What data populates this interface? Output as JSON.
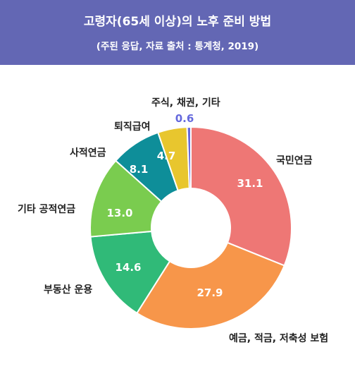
{
  "header": {
    "title": "고령자(65세 이상)의 노후 준비 방법",
    "subtitle": "(주된 응답, 자료 출처 : 통계청, 2019)"
  },
  "colors": {
    "header_bg": "#6367b4",
    "series": [
      "#ee7775",
      "#f7964a",
      "#30ba78",
      "#7acc4f",
      "#0e8e99",
      "#e8c62e",
      "#6569dd"
    ]
  },
  "chart_data": {
    "type": "pie",
    "donut": true,
    "title": "고령자(65세 이상)의 노후 준비 방법",
    "subtitle": "(주된 응답, 자료 출처 : 통계청, 2019)",
    "categories": [
      "국민연금",
      "예금, 적금, 저축성 보험",
      "부동산 운용",
      "기타 공적연금",
      "사적연금",
      "퇴직급여",
      "주식, 채권, 기타"
    ],
    "values": [
      31.1,
      27.9,
      14.6,
      13.0,
      8.1,
      4.7,
      0.6
    ],
    "value_labels": [
      "31.1",
      "27.9",
      "14.6",
      "13.0",
      "8.1",
      "4.7",
      "0.6"
    ],
    "start": "12 o'clock",
    "direction": "clockwise"
  }
}
